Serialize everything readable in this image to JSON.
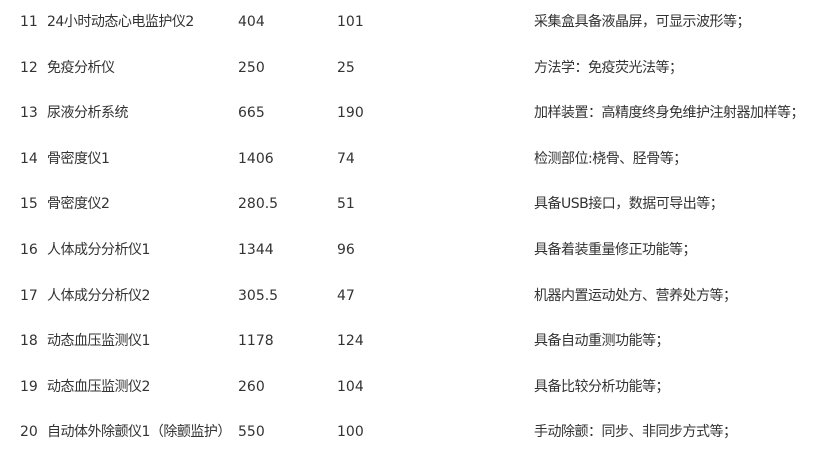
{
  "rows": [
    {
      "no": "11",
      "name": "24小时动态心电监护仪2",
      "v1": "404",
      "v2": "101",
      "desc": "采集盒具备液晶屏，可显示波形等；"
    },
    {
      "no": "12",
      "name": "免疫分析仪",
      "v1": "250",
      "v2": "25",
      "desc": "方法学：免疫荧光法等；"
    },
    {
      "no": "13",
      "name": "尿液分析系统",
      "v1": "665",
      "v2": "190",
      "desc": "加样装置：高精度终身免维护注射器加样等；"
    },
    {
      "no": "14",
      "name": "骨密度仪1",
      "v1": "1406",
      "v2": "74",
      "desc": "检测部位:桡骨、胫骨等；"
    },
    {
      "no": "15",
      "name": "骨密度仪2",
      "v1": "280.5",
      "v2": "51",
      "desc": "具备USB接口，数据可导出等；"
    },
    {
      "no": "16",
      "name": "人体成分分析仪1",
      "v1": "1344",
      "v2": "96",
      "desc": "具备着装重量修正功能等；"
    },
    {
      "no": "17",
      "name": "人体成分分析仪2",
      "v1": "305.5",
      "v2": "47",
      "desc": "机器内置运动处方、营养处方等；"
    },
    {
      "no": "18",
      "name": "动态血压监测仪1",
      "v1": "1178",
      "v2": "124",
      "desc": "具备自动重测功能等；"
    },
    {
      "no": "19",
      "name": "动态血压监测仪2",
      "v1": "260",
      "v2": "104",
      "desc": "具备比较分析功能等；"
    },
    {
      "no": "20",
      "name": "自动体外除颤仪1（除颤监护）",
      "v1": "550",
      "v2": "100",
      "desc": "手动除颤：同步、非同步方式等；"
    }
  ]
}
